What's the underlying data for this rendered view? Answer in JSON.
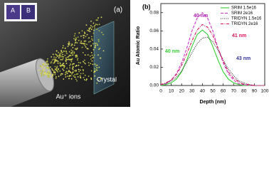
{
  "panel_a": {
    "label": "(a)",
    "inset_labels": [
      "A",
      "B"
    ],
    "ions_label": "Au⁺ ions",
    "crystal_label": "Crystal"
  },
  "chart_data": {
    "type": "line",
    "panel_label": "(b)",
    "xlabel": "Depth (nm)",
    "ylabel": "Au Atomic Ratio",
    "x": [
      0,
      5,
      10,
      15,
      20,
      25,
      30,
      35,
      40,
      45,
      50,
      55,
      60,
      65,
      70,
      75,
      80,
      85,
      90,
      95,
      100
    ],
    "series": [
      {
        "name": "SRIM 1.5e16",
        "color": "#33cc33",
        "linestyle": "solid",
        "values": [
          0.0,
          0.001,
          0.003,
          0.007,
          0.015,
          0.028,
          0.043,
          0.056,
          0.061,
          0.056,
          0.043,
          0.028,
          0.015,
          0.007,
          0.003,
          0.001,
          0.0,
          0,
          0,
          0,
          0
        ]
      },
      {
        "name": "SRIM 2e16",
        "color": "#cc33cc",
        "linestyle": "dashed",
        "values": [
          0.001,
          0.002,
          0.006,
          0.013,
          0.025,
          0.041,
          0.06,
          0.074,
          0.08,
          0.074,
          0.06,
          0.041,
          0.025,
          0.013,
          0.006,
          0.002,
          0.001,
          0,
          0,
          0,
          0
        ]
      },
      {
        "name": "TRIDYN 1.5e16",
        "color": "#222222",
        "linestyle": "dotted",
        "values": [
          0.001,
          0.002,
          0.005,
          0.009,
          0.016,
          0.026,
          0.036,
          0.046,
          0.052,
          0.053,
          0.048,
          0.039,
          0.028,
          0.018,
          0.011,
          0.005,
          0.003,
          0.001,
          0,
          0,
          0
        ]
      },
      {
        "name": "TRIDYN 2e16",
        "color": "#d4145a",
        "linestyle": "dashdot",
        "values": [
          0.001,
          0.003,
          0.006,
          0.012,
          0.022,
          0.035,
          0.049,
          0.061,
          0.067,
          0.064,
          0.055,
          0.041,
          0.027,
          0.015,
          0.008,
          0.004,
          0.001,
          0.001,
          0,
          0,
          0
        ]
      }
    ],
    "xlim": [
      0,
      100
    ],
    "ylim": [
      0,
      0.09
    ],
    "xticks": [
      0,
      10,
      20,
      30,
      40,
      50,
      60,
      70,
      80,
      90,
      100
    ],
    "yticks": [
      {
        "value": 0,
        "label": "0.00"
      },
      {
        "value": 0.02,
        "label": "0.02"
      },
      {
        "value": 0.04,
        "label": "0.04"
      },
      {
        "value": 0.06,
        "label": "0.06"
      },
      {
        "value": 0.08,
        "label": "0.08"
      }
    ],
    "legend": "upper right",
    "annotations": [
      {
        "text": "40 nm",
        "color": "#33cc33"
      },
      {
        "text": "40 nm",
        "color": "#aa22aa"
      },
      {
        "text": "41 nm",
        "color": "#d4145a"
      },
      {
        "text": "43 nm",
        "color": "#333399"
      }
    ]
  }
}
